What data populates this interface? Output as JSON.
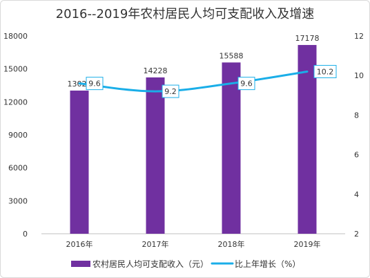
{
  "chart_data": {
    "type": "bar+line",
    "title": "2016--2019年农村居民人均可支配收入及增速",
    "categories": [
      "2016年",
      "2017年",
      "2018年",
      "2019年"
    ],
    "series": [
      {
        "name": "农村居民人均可支配收入（元）",
        "type": "bar",
        "axis": "left",
        "values": [
          13029,
          14228,
          15588,
          17178
        ],
        "color": "#7030a0"
      },
      {
        "name": "比上年增长（%）",
        "type": "line",
        "axis": "right",
        "values": [
          9.6,
          9.2,
          9.6,
          10.2
        ],
        "color": "#1aaee8"
      }
    ],
    "y_left": {
      "min": 0,
      "max": 18000,
      "ticks": [
        0,
        3000,
        6000,
        9000,
        12000,
        15000,
        18000
      ]
    },
    "y_right": {
      "min": 2,
      "max": 12,
      "ticks": [
        2,
        4,
        6,
        8,
        10,
        12
      ]
    },
    "grid": false,
    "legend_position": "bottom"
  }
}
